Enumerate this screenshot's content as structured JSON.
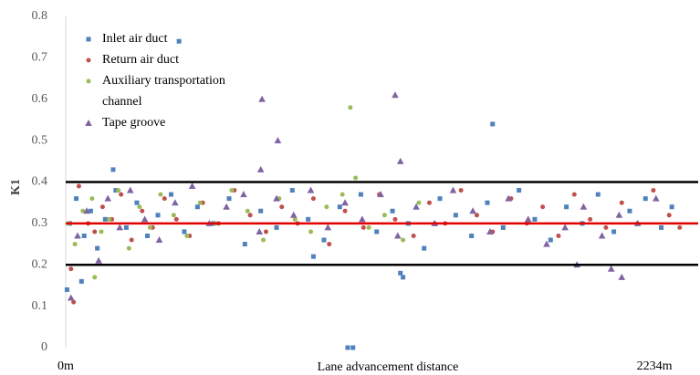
{
  "chart_data": {
    "type": "scatter",
    "y_label": "K1",
    "x_label": "Lane advancement distance",
    "xlim": [
      0,
      2400
    ],
    "xticks": [
      {
        "value": 0,
        "label": "0m"
      },
      {
        "value": 2234,
        "label": "2234m"
      }
    ],
    "ylim": [
      0,
      0.8
    ],
    "yticks": [
      0,
      0.1,
      0.2,
      0.3,
      0.4,
      0.5,
      0.6,
      0.7,
      0.8
    ],
    "reference_lines": [
      {
        "value": 0.4,
        "color": "#000000"
      },
      {
        "value": 0.3,
        "color": "#e00000"
      },
      {
        "value": 0.2,
        "color": "#000000"
      }
    ],
    "series": [
      {
        "name": "Inlet air duct",
        "color": "#4f81bd",
        "marker": "square",
        "x": [
          15,
          40,
          70,
          95,
          120,
          150,
          190,
          230,
          270,
          310,
          350,
          400,
          450,
          500,
          560,
          620,
          680,
          740,
          800,
          860,
          920,
          980,
          1040,
          1120,
          1180,
          1240,
          1300,
          1360,
          1420,
          1480,
          1540,
          1600,
          1660,
          1720,
          1780,
          1840,
          1900,
          1960,
          2020,
          2080,
          2140,
          2200,
          2260,
          2300,
          430,
          1620,
          180,
          1090,
          1070,
          5,
          60,
          940,
          1270,
          1280
        ],
        "values": [
          0.3,
          0.36,
          0.27,
          0.33,
          0.24,
          0.31,
          0.38,
          0.29,
          0.35,
          0.27,
          0.32,
          0.37,
          0.28,
          0.34,
          0.3,
          0.36,
          0.25,
          0.33,
          0.29,
          0.38,
          0.31,
          0.26,
          0.34,
          0.37,
          0.28,
          0.33,
          0.3,
          0.24,
          0.36,
          0.32,
          0.27,
          0.35,
          0.29,
          0.38,
          0.31,
          0.26,
          0.34,
          0.3,
          0.37,
          0.28,
          0.33,
          0.36,
          0.29,
          0.34,
          0.74,
          0.54,
          0.43,
          0,
          0,
          0.14,
          0.16,
          0.22,
          0.18,
          0.17
        ]
      },
      {
        "name": "Return air duct",
        "color": "#c0504d",
        "marker": "circle",
        "x": [
          30,
          20,
          50,
          85,
          110,
          140,
          175,
          210,
          250,
          290,
          330,
          375,
          420,
          470,
          520,
          580,
          640,
          700,
          760,
          820,
          880,
          940,
          1000,
          1060,
          1130,
          1190,
          1250,
          1320,
          1380,
          1440,
          1500,
          1560,
          1620,
          1690,
          1750,
          1810,
          1870,
          1930,
          1990,
          2050,
          2110,
          2170,
          2230,
          2290,
          2330
        ],
        "values": [
          0.11,
          0.19,
          0.39,
          0.3,
          0.28,
          0.34,
          0.31,
          0.37,
          0.26,
          0.33,
          0.29,
          0.36,
          0.31,
          0.27,
          0.35,
          0.3,
          0.38,
          0.32,
          0.28,
          0.34,
          0.3,
          0.36,
          0.25,
          0.33,
          0.29,
          0.37,
          0.31,
          0.27,
          0.35,
          0.3,
          0.38,
          0.32,
          0.28,
          0.36,
          0.3,
          0.34,
          0.27,
          0.37,
          0.31,
          0.29,
          0.35,
          0.3,
          0.38,
          0.32,
          0.29
        ]
      },
      {
        "name": "Auxiliary transportation channel",
        "color": "#9bbb59",
        "marker": "circle",
        "x": [
          1080,
          1100,
          110,
          10,
          35,
          65,
          100,
          135,
          165,
          200,
          240,
          280,
          320,
          360,
          410,
          460,
          510,
          570,
          630,
          690,
          750,
          810,
          870,
          930,
          990,
          1050,
          1150,
          1210,
          1280,
          1340,
          1400
        ],
        "values": [
          0.58,
          0.41,
          0.17,
          0.3,
          0.25,
          0.33,
          0.36,
          0.28,
          0.31,
          0.38,
          0.24,
          0.34,
          0.29,
          0.37,
          0.32,
          0.27,
          0.35,
          0.3,
          0.38,
          0.33,
          0.26,
          0.36,
          0.31,
          0.28,
          0.34,
          0.37,
          0.29,
          0.32,
          0.26,
          0.35,
          0.3
        ]
      },
      {
        "name": "Tape groove",
        "color": "#8064a2",
        "marker": "triangle",
        "x": [
          745,
          805,
          740,
          1250,
          1270,
          20,
          2070,
          2110,
          1940,
          45,
          80,
          125,
          160,
          205,
          245,
          300,
          355,
          415,
          480,
          545,
          610,
          675,
          735,
          800,
          865,
          930,
          995,
          1060,
          1125,
          1195,
          1260,
          1330,
          1400,
          1470,
          1545,
          1610,
          1680,
          1755,
          1825,
          1895,
          1965,
          2035,
          2100,
          2170,
          2240
        ],
        "values": [
          0.6,
          0.5,
          0.43,
          0.61,
          0.45,
          0.12,
          0.19,
          0.17,
          0.2,
          0.27,
          0.33,
          0.21,
          0.36,
          0.29,
          0.38,
          0.31,
          0.26,
          0.35,
          0.39,
          0.3,
          0.34,
          0.37,
          0.28,
          0.36,
          0.32,
          0.38,
          0.29,
          0.35,
          0.31,
          0.37,
          0.27,
          0.34,
          0.3,
          0.38,
          0.33,
          0.28,
          0.36,
          0.31,
          0.25,
          0.29,
          0.34,
          0.27,
          0.32,
          0.3,
          0.36
        ]
      }
    ]
  }
}
